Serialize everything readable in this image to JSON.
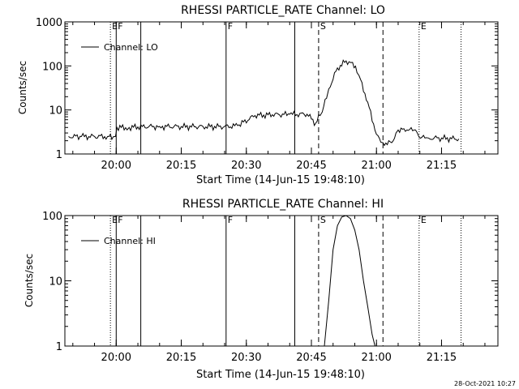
{
  "footer": {
    "timestamp": "28-Oct-2021 10:27"
  },
  "chart_data": [
    {
      "type": "line",
      "title": "RHESSI PARTICLE_RATE Channel: LO",
      "xlabel": "Start Time (14-Jun-15 19:48:10)",
      "ylabel": "Counts/sec",
      "y_scale": "log",
      "ylim": [
        1,
        1000
      ],
      "xlim": [
        "19:48:10",
        "21:28:00"
      ],
      "x_ticks": [
        "20:00",
        "20:15",
        "20:30",
        "20:45",
        "21:00",
        "21:15"
      ],
      "y_ticks": [
        "1",
        "10",
        "100",
        "1000"
      ],
      "legend": {
        "label": "Channel: LO",
        "position": "top-left"
      },
      "markers": [
        {
          "time": "19:58:40",
          "style": "dotted",
          "label": "E"
        },
        {
          "time": "20:00:00",
          "style": "solid",
          "label": "F"
        },
        {
          "time": "20:05:40",
          "style": "solid",
          "label": ""
        },
        {
          "time": "20:25:20",
          "style": "solid",
          "label": "F"
        },
        {
          "time": "20:41:10",
          "style": "solid",
          "label": ""
        },
        {
          "time": "20:46:40",
          "style": "dashed",
          "label": "S"
        },
        {
          "time": "21:01:30",
          "style": "dashed",
          "label": ""
        },
        {
          "time": "21:09:50",
          "style": "dotted",
          "label": "E"
        },
        {
          "time": "21:19:30",
          "style": "dotted",
          "label": ""
        }
      ],
      "series": [
        {
          "x": [
            "19:49:00",
            "19:52:00",
            "19:55:00",
            "19:58:00",
            "19:59:50",
            "20:00:10",
            "20:03:00",
            "20:06:00",
            "20:10:00",
            "20:15:00",
            "20:20:00",
            "20:25:00",
            "20:28:00",
            "20:32:00",
            "20:36:00",
            "20:40:00",
            "20:44:00",
            "20:46:00",
            "20:47:30",
            "20:49:00",
            "20:51:00",
            "20:53:00",
            "20:54:30",
            "20:56:00",
            "20:58:00",
            "21:00:00",
            "21:01:30",
            "21:03:30",
            "21:05:00",
            "21:07:00",
            "21:09:00",
            "21:09:50",
            "21:12:00",
            "21:15:00",
            "21:19:00"
          ],
          "y": [
            2.5,
            2.5,
            2.5,
            2.5,
            2.5,
            4,
            4,
            4.2,
            4.2,
            4.2,
            4.2,
            4.2,
            4.4,
            7.5,
            7.8,
            8,
            8,
            5,
            9,
            30,
            90,
            130,
            120,
            60,
            15,
            2.8,
            1.8,
            1.8,
            3.5,
            3.5,
            3.5,
            2.4,
            2.3,
            2.3,
            2.2
          ]
        }
      ]
    },
    {
      "type": "line",
      "title": "RHESSI PARTICLE_RATE Channel: HI",
      "xlabel": "Start Time (14-Jun-15 19:48:10)",
      "ylabel": "Counts/sec",
      "y_scale": "log",
      "ylim": [
        1,
        100
      ],
      "xlim": [
        "19:48:10",
        "21:28:00"
      ],
      "x_ticks": [
        "20:00",
        "20:15",
        "20:30",
        "20:45",
        "21:00",
        "21:15"
      ],
      "y_ticks": [
        "1",
        "10",
        "100"
      ],
      "legend": {
        "label": "Channel: HI",
        "position": "top-left"
      },
      "markers": [
        {
          "time": "19:58:40",
          "style": "dotted",
          "label": "E"
        },
        {
          "time": "20:00:00",
          "style": "solid",
          "label": "F"
        },
        {
          "time": "20:05:40",
          "style": "solid",
          "label": ""
        },
        {
          "time": "20:25:20",
          "style": "solid",
          "label": "F"
        },
        {
          "time": "20:41:10",
          "style": "solid",
          "label": ""
        },
        {
          "time": "20:46:40",
          "style": "dashed",
          "label": "S"
        },
        {
          "time": "21:01:30",
          "style": "dashed",
          "label": ""
        },
        {
          "time": "21:09:50",
          "style": "dotted",
          "label": "E"
        },
        {
          "time": "21:19:30",
          "style": "dotted",
          "label": ""
        }
      ],
      "series": [
        {
          "x": [
            "20:48:00",
            "20:49:00",
            "20:50:00",
            "20:51:00",
            "20:52:00",
            "20:53:00",
            "20:54:00",
            "20:55:00",
            "20:56:00",
            "20:57:00",
            "20:58:00",
            "20:59:00",
            "20:59:40"
          ],
          "y": [
            1,
            5,
            30,
            70,
            95,
            100,
            90,
            60,
            30,
            10,
            4,
            1.5,
            1
          ]
        }
      ]
    }
  ]
}
